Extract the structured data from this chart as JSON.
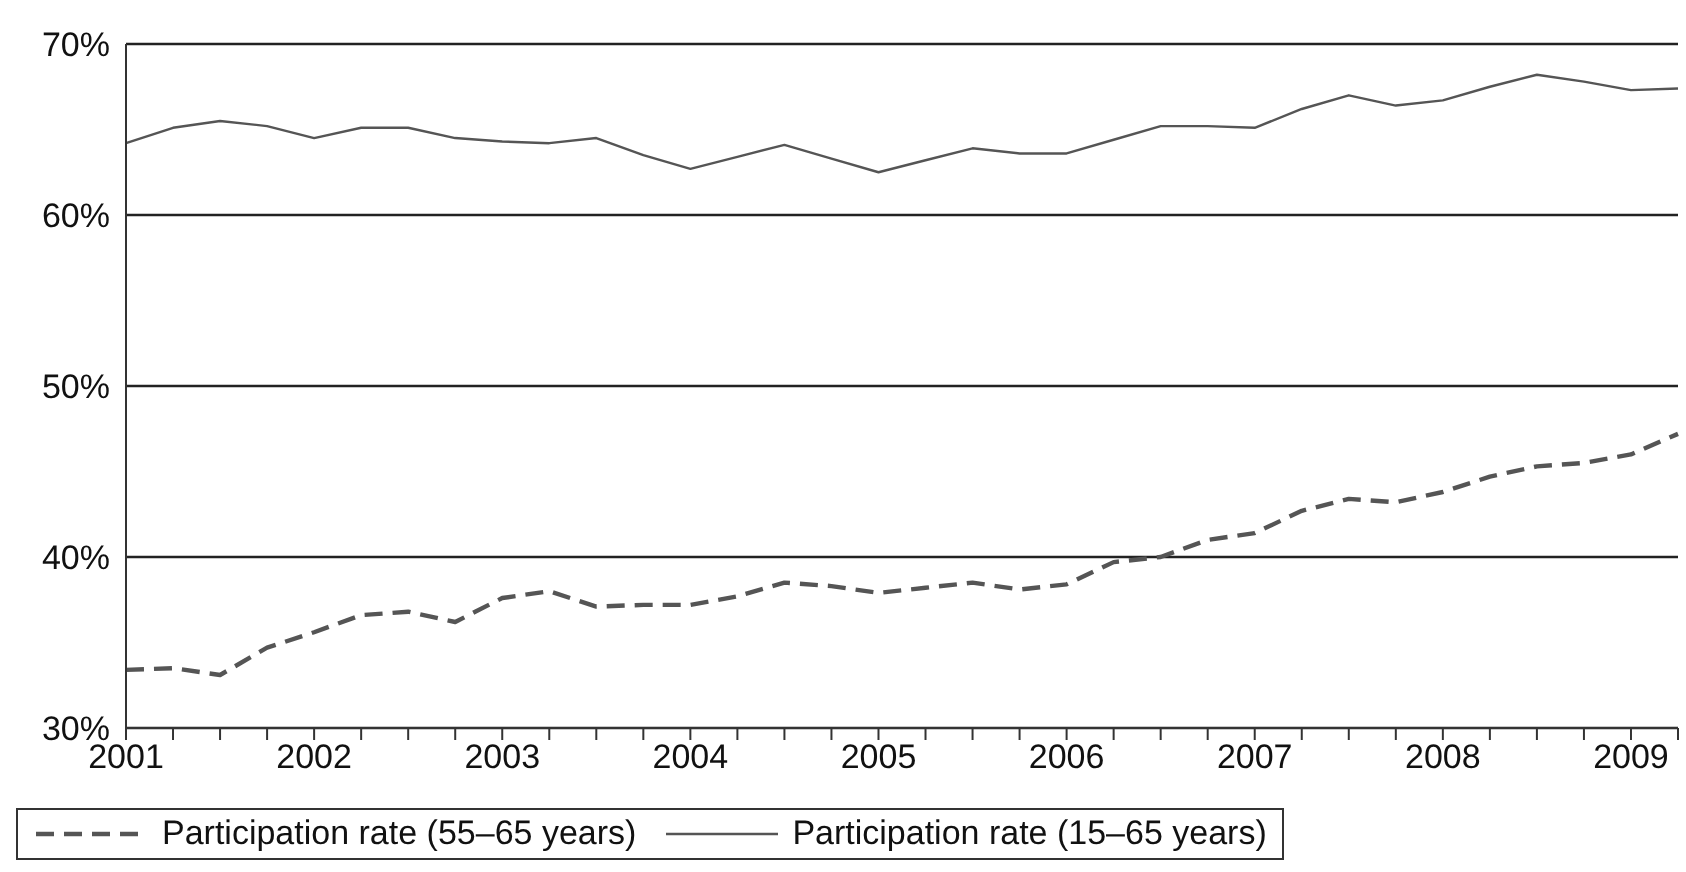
{
  "chart_data": {
    "type": "line",
    "categories": [
      "2001",
      null,
      null,
      null,
      "2002",
      null,
      null,
      null,
      "2003",
      null,
      null,
      null,
      "2004",
      null,
      null,
      null,
      "2005",
      null,
      null,
      null,
      "2006",
      null,
      null,
      null,
      "2007",
      null,
      null,
      null,
      "2008",
      null,
      null,
      null,
      "2009",
      null
    ],
    "series": [
      {
        "name": "Participation rate (55–65 years)",
        "color": "#555555",
        "line_style": "dashed",
        "values": [
          33.4,
          33.5,
          33.1,
          34.7,
          35.6,
          36.6,
          36.8,
          36.2,
          37.6,
          38.0,
          37.1,
          37.2,
          37.2,
          37.7,
          38.5,
          38.3,
          37.9,
          38.2,
          38.5,
          38.1,
          38.4,
          39.7,
          40.0,
          41.0,
          41.4,
          42.7,
          43.4,
          43.2,
          43.8,
          44.7,
          45.3,
          45.5,
          46.0,
          47.2
        ]
      },
      {
        "name": "Participation rate (15–65 years)",
        "color": "#555555",
        "line_style": "solid",
        "values": [
          64.2,
          65.1,
          65.5,
          65.2,
          64.5,
          65.1,
          65.1,
          64.5,
          64.3,
          64.2,
          64.5,
          63.5,
          62.7,
          63.4,
          64.1,
          63.3,
          62.5,
          63.2,
          63.9,
          63.6,
          63.6,
          64.4,
          65.2,
          65.2,
          65.1,
          66.2,
          67.0,
          66.4,
          66.7,
          67.5,
          68.2,
          67.8,
          67.3,
          67.4
        ]
      }
    ],
    "ylim": [
      30,
      70
    ],
    "yticks": [
      {
        "value": 30,
        "label": "30%"
      },
      {
        "value": 40,
        "label": "40%"
      },
      {
        "value": 50,
        "label": "50%"
      },
      {
        "value": 60,
        "label": "60%"
      },
      {
        "value": 70,
        "label": "70%"
      }
    ],
    "grid": "y",
    "legend": "bottom",
    "marker": "none"
  }
}
